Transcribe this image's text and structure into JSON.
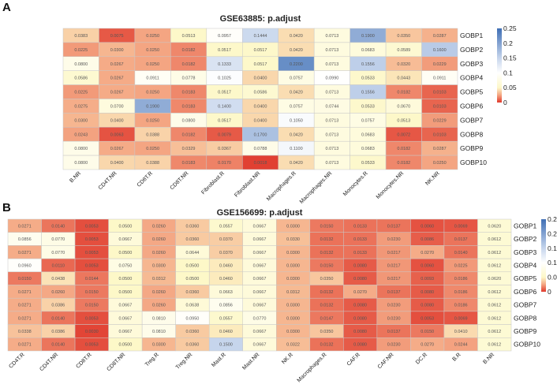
{
  "panels": [
    {
      "label": "A"
    },
    {
      "label": "B"
    }
  ],
  "chart_data": [
    {
      "type": "heatmap",
      "title": "GSE63885: p.adjust",
      "columns": [
        "B.NR",
        "CD4T.NR",
        "CD8T.R",
        "CD8T.NR",
        "Fibroblast.R",
        "Fibroblast.NR",
        "Macrophages.R",
        "Macrophages.NR",
        "Monocytes.R",
        "Monocytes.NR",
        "NK.NR"
      ],
      "rows": [
        "GOBP1",
        "GOBP2",
        "GOBP3",
        "GOBP4",
        "GOBP5",
        "GOBP6",
        "GOBP7",
        "GOBP8",
        "GOBP9",
        "GOBP10"
      ],
      "values": [
        [
          "0.0383",
          "0.0075",
          "0.0250",
          "0.0513",
          "0.0957",
          "0.1444",
          "0.0420",
          "0.0713",
          "0.1900",
          "0.0350",
          "0.0287"
        ],
        [
          "0.0225",
          "0.0300",
          "0.0250",
          "0.0182",
          "0.0517",
          "0.0517",
          "0.0420",
          "0.0713",
          "0.0683",
          "0.0589",
          "0.1600"
        ],
        [
          "0.0800",
          "0.0267",
          "0.0250",
          "0.0182",
          "0.1333",
          "0.0517",
          "0.2200",
          "0.0713",
          "0.1556",
          "0.0320",
          "0.0229"
        ],
        [
          "0.0586",
          "0.0267",
          "0.0911",
          "0.0778",
          "0.1025",
          "0.0400",
          "0.0757",
          "0.0990",
          "0.0533",
          "0.0443",
          "0.0911"
        ],
        [
          "0.0225",
          "0.0267",
          "0.0250",
          "0.0183",
          "0.0517",
          "0.0586",
          "0.0420",
          "0.0713",
          "0.1556",
          "0.0182",
          "0.0103"
        ],
        [
          "0.0275",
          "0.0700",
          "0.1900",
          "0.0183",
          "0.1400",
          "0.0400",
          "0.0757",
          "0.0744",
          "0.0533",
          "0.0670",
          "0.0103"
        ],
        [
          "0.0300",
          "0.0400",
          "0.0250",
          "0.0800",
          "0.0517",
          "0.0400",
          "0.1050",
          "0.0713",
          "0.0757",
          "0.0513",
          "0.0229"
        ],
        [
          "0.0243",
          "0.0063",
          "0.0388",
          "0.0182",
          "0.0079",
          "0.1700",
          "0.0420",
          "0.0713",
          "0.0683",
          "0.0072",
          "0.0103"
        ],
        [
          "0.0800",
          "0.0267",
          "0.0250",
          "0.0329",
          "0.0367",
          "0.0788",
          "0.1100",
          "0.0713",
          "0.0683",
          "0.0182",
          "0.0287"
        ],
        [
          "0.0800",
          "0.0400",
          "0.0388",
          "0.0183",
          "0.0170",
          "0.0018",
          "0.0420",
          "0.0713",
          "0.0533",
          "0.0182",
          "0.0250"
        ]
      ],
      "colorbar": {
        "ticks": [
          "0.25",
          "0.2",
          "0.15",
          "0.1",
          "0.05",
          "0"
        ],
        "range": [
          0,
          0.25
        ],
        "colors": {
          "low": "#e0382c",
          "mid": "#fdf8c8",
          "white": "#ffffff",
          "high": "#3f6fb5"
        }
      }
    },
    {
      "type": "heatmap",
      "title": "GSE156699: p.adjust",
      "columns": [
        "CD4T.R",
        "CD4T.NR",
        "CD8T.R",
        "CD8T.NR",
        "Treg.R",
        "Treg.NR",
        "Mast.R",
        "Mast.NR",
        "NK.R",
        "Macrophages.R",
        "CAF.R",
        "CAF.NR",
        "DC.R",
        "B.R",
        "B.NR"
      ],
      "rows": [
        "GOBP1",
        "GOBP2",
        "GOBP3",
        "GOBP4",
        "GOBP5",
        "GOBP6",
        "GOBP7",
        "GOBP8",
        "GOBP9",
        "GOBP10"
      ],
      "values": [
        [
          "0.0271",
          "0.0140",
          "0.0053",
          "0.0500",
          "0.0260",
          "0.0360",
          "0.0557",
          "0.0667",
          "0.0300",
          "0.0150",
          "0.0133",
          "0.0137",
          "0.0060",
          "0.0069",
          "0.0620"
        ],
        [
          "0.0856",
          "0.0770",
          "0.0053",
          "0.0667",
          "0.0260",
          "0.0360",
          "0.0370",
          "0.0667",
          "0.0330",
          "0.0132",
          "0.0133",
          "0.0230",
          "0.0086",
          "0.0137",
          "0.0612"
        ],
        [
          "0.0271",
          "0.0770",
          "0.0053",
          "0.0500",
          "0.0260",
          "0.0644",
          "0.0370",
          "0.0667",
          "0.0300",
          "0.0132",
          "0.0133",
          "0.0217",
          "0.0270",
          "0.0140",
          "0.0612"
        ],
        [
          "0.0960",
          "0.0110",
          "0.0053",
          "0.0750",
          "0.0300",
          "0.0500",
          "0.0460",
          "0.0667",
          "0.0300",
          "0.0150",
          "0.0080",
          "0.0217",
          "0.0060",
          "0.0225",
          "0.0612"
        ],
        [
          "0.0150",
          "0.0438",
          "0.0144",
          "0.0500",
          "0.0312",
          "0.0500",
          "0.0460",
          "0.0667",
          "0.0300",
          "0.0350",
          "0.0080",
          "0.0217",
          "0.0093",
          "0.0186",
          "0.0620"
        ],
        [
          "0.0271",
          "0.0260",
          "0.0150",
          "0.0500",
          "0.0260",
          "0.0360",
          "0.0663",
          "0.0667",
          "0.0312",
          "0.0132",
          "0.0270",
          "0.0137",
          "0.0080",
          "0.0186",
          "0.0612"
        ],
        [
          "0.0271",
          "0.0386",
          "0.0150",
          "0.0667",
          "0.0260",
          "0.0638",
          "0.0856",
          "0.0667",
          "0.0300",
          "0.0132",
          "0.0080",
          "0.0230",
          "0.0080",
          "0.0186",
          "0.0612"
        ],
        [
          "0.0271",
          "0.0140",
          "0.0053",
          "0.0667",
          "0.0810",
          "0.0950",
          "0.0557",
          "0.0770",
          "0.0300",
          "0.0147",
          "0.0080",
          "0.0230",
          "0.0053",
          "0.0069",
          "0.0612"
        ],
        [
          "0.0338",
          "0.0386",
          "0.0030",
          "0.0667",
          "0.0810",
          "0.0360",
          "0.0460",
          "0.0667",
          "0.0300",
          "0.0350",
          "0.0080",
          "0.0137",
          "0.0150",
          "0.0410",
          "0.0612"
        ],
        [
          "0.0271",
          "0.0140",
          "0.0053",
          "0.0500",
          "0.0300",
          "0.0360",
          "0.1500",
          "0.0667",
          "0.0322",
          "0.0132",
          "0.0080",
          "0.0230",
          "0.0270",
          "0.0244",
          "0.0612"
        ]
      ],
      "colorbar": {
        "ticks": [
          "0.25",
          "0.2",
          "0.15",
          "0.1",
          "0.05",
          "0"
        ],
        "range": [
          0,
          0.25
        ],
        "colors": {
          "low": "#e0382c",
          "mid": "#fdf8c8",
          "white": "#ffffff",
          "high": "#3f6fb5"
        }
      }
    }
  ]
}
